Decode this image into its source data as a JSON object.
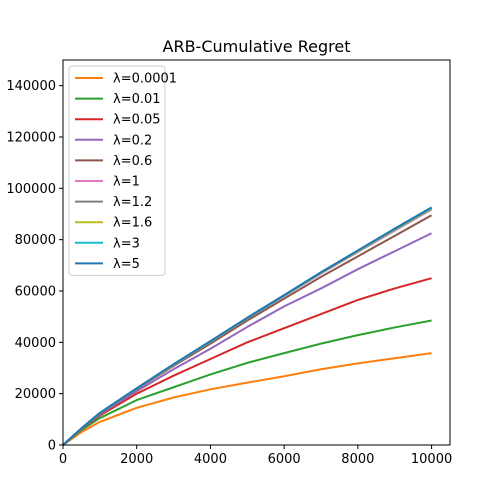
{
  "chart_data": {
    "type": "line",
    "title": "ARB-Cumulative Regret",
    "xlabel": "",
    "ylabel": "",
    "xlim": [
      0,
      10500
    ],
    "ylim": [
      0,
      150000
    ],
    "xticks": [
      0,
      2000,
      4000,
      6000,
      8000,
      10000
    ],
    "yticks": [
      0,
      20000,
      40000,
      60000,
      80000,
      100000,
      120000,
      140000
    ],
    "grid": false,
    "legend_position": "top-left",
    "series": [
      {
        "name": "λ=0.0001",
        "color": "#ff7f0e",
        "x": [
          0,
          500,
          1000,
          2000,
          3000,
          4000,
          5000,
          6000,
          7000,
          8000,
          9000,
          10000
        ],
        "y": [
          0,
          5000,
          9000,
          14500,
          18500,
          21700,
          24300,
          26800,
          29500,
          31800,
          33800,
          35800
        ]
      },
      {
        "name": "λ=0.01",
        "color": "#2ca02c",
        "x": [
          0,
          500,
          1000,
          2000,
          3000,
          4000,
          5000,
          6000,
          7000,
          8000,
          9000,
          10000
        ],
        "y": [
          0,
          5800,
          10500,
          17500,
          22500,
          27500,
          32000,
          35800,
          39500,
          42800,
          45800,
          48500
        ]
      },
      {
        "name": "λ=0.05",
        "color": "#d62728",
        "x": [
          0,
          500,
          1000,
          2000,
          3000,
          4000,
          5000,
          6000,
          7000,
          8000,
          9000,
          10000
        ],
        "y": [
          0,
          6200,
          11500,
          20000,
          27000,
          33500,
          40000,
          45500,
          51000,
          56500,
          61000,
          65000
        ]
      },
      {
        "name": "λ=0.2",
        "color": "#9467bd",
        "x": [
          0,
          500,
          1000,
          2000,
          3000,
          4000,
          5000,
          6000,
          7000,
          8000,
          9000,
          10000
        ],
        "y": [
          0,
          6300,
          12000,
          21000,
          29500,
          37500,
          46000,
          54000,
          61000,
          68500,
          75500,
          82500
        ]
      },
      {
        "name": "λ=0.6",
        "color": "#8c564b",
        "x": [
          0,
          500,
          1000,
          2000,
          3000,
          4000,
          5000,
          6000,
          7000,
          8000,
          9000,
          10000
        ],
        "y": [
          0,
          6400,
          12300,
          21800,
          30800,
          39500,
          48500,
          57000,
          65500,
          73500,
          81500,
          89500
        ]
      },
      {
        "name": "λ=1",
        "color": "#e377c2",
        "x": [
          0,
          500,
          1000,
          2000,
          3000,
          4000,
          5000,
          6000,
          7000,
          8000,
          9000,
          10000
        ],
        "y": [
          0,
          6450,
          12400,
          22000,
          31200,
          40200,
          49300,
          58000,
          66800,
          75200,
          83500,
          91800
        ]
      },
      {
        "name": "λ=1.2",
        "color": "#7f7f7f",
        "x": [
          0,
          500,
          1000,
          2000,
          3000,
          4000,
          5000,
          6000,
          7000,
          8000,
          9000,
          10000
        ],
        "y": [
          0,
          6450,
          12400,
          22000,
          31300,
          40300,
          49400,
          58100,
          67000,
          75400,
          83800,
          92000
        ]
      },
      {
        "name": "λ=1.6",
        "color": "#bcbd22",
        "x": [
          0,
          500,
          1000,
          2000,
          3000,
          4000,
          5000,
          6000,
          7000,
          8000,
          9000,
          10000
        ],
        "y": [
          0,
          6450,
          12400,
          22000,
          31300,
          40300,
          49400,
          58200,
          67100,
          75500,
          84000,
          92200
        ]
      },
      {
        "name": "λ=3",
        "color": "#17becf",
        "x": [
          0,
          500,
          1000,
          2000,
          3000,
          4000,
          5000,
          6000,
          7000,
          8000,
          9000,
          10000
        ],
        "y": [
          0,
          6500,
          12500,
          22100,
          31400,
          40400,
          49500,
          58300,
          67200,
          75700,
          84200,
          92400
        ]
      },
      {
        "name": "λ=5",
        "color": "#1f77b4",
        "x": [
          0,
          500,
          1000,
          2000,
          3000,
          4000,
          5000,
          6000,
          7000,
          8000,
          9000,
          10000
        ],
        "y": [
          0,
          6500,
          12500,
          22100,
          31500,
          40500,
          49600,
          58400,
          67300,
          75800,
          84300,
          92600
        ]
      }
    ]
  }
}
